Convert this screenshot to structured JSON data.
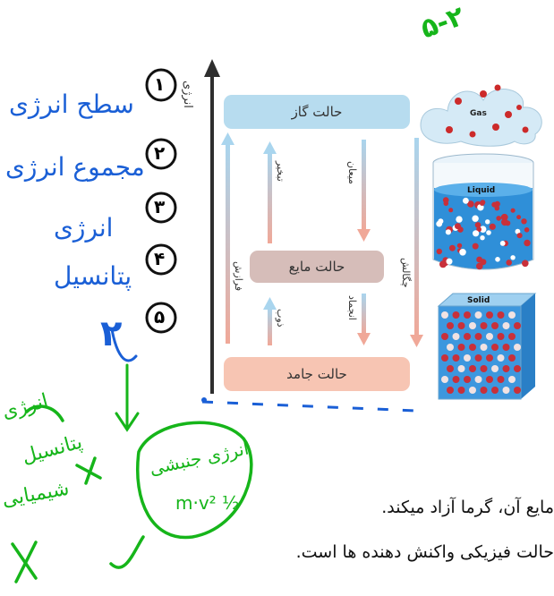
{
  "axis": {
    "label": "انرژی"
  },
  "states": {
    "gas": "حالت گاز",
    "liquid": "حالت مایع",
    "solid": "حالت جامد"
  },
  "transitions": {
    "sublimation": "فرازش",
    "evaporation": "تبخیر",
    "condensation_to_liquid": "میعان",
    "melting": "ذوب",
    "freezing": "انجماد",
    "deposition": "چگالش"
  },
  "pictures": {
    "gas": "Gas",
    "liquid": "Liquid",
    "solid": "Solid"
  },
  "annotations": {
    "top_right": "۵-۲",
    "item1": "سطح انرژی",
    "item2": "مجموع انرژی",
    "item3a": "انرژی",
    "item3b": "پتانسیل",
    "number_left": "۲",
    "note_left_a": "انرژی",
    "note_left_b": "پتانسیل",
    "note_left_c": "شیمیایی",
    "note_circle_a": "انرژی جنبشی",
    "note_circle_b": "½ m·v²",
    "numbers": [
      "۱",
      "۲",
      "۳",
      "۴",
      "۵"
    ]
  },
  "paragraph": {
    "line1": "مایع آن، گرما آزاد میکند.",
    "line2": "حالت فیزیکی واکنش دهنده ها است."
  },
  "colors": {
    "ink_blue": "#1a5fd6",
    "ink_green": "#16b51a",
    "gas_box": "#b7dcef",
    "liquid_box": "#d6bdb9",
    "solid_box": "#f7c5b3"
  }
}
